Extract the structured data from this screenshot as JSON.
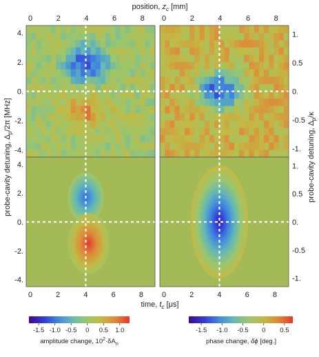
{
  "chart_data": {
    "type": "heatmap",
    "top_axis": {
      "label_prefix": "position, ",
      "label_var": "z",
      "label_sub": "c",
      "label_suffix": " [mm]",
      "ticks": [
        "0",
        "2",
        "4",
        "6",
        "8"
      ],
      "range": [
        -0.3,
        8.9
      ]
    },
    "bottom_axis": {
      "label_prefix": "time, ",
      "label_var": "t",
      "label_sub": "c",
      "label_suffix": " [μs]",
      "ticks": [
        "0",
        "2",
        "4",
        "6",
        "8"
      ],
      "range": [
        -0.3,
        9.0
      ]
    },
    "left_axis": {
      "label_text": "probe-cavity detuning, Δ",
      "label_sub": "p",
      "label_suffix": "/2π [MHz]",
      "ticks": [
        "4.",
        "2.",
        "0.",
        "-2.",
        "-4."
      ],
      "range": [
        -4.5,
        4.5
      ]
    },
    "right_axis": {
      "label_text": "probe-cavity detuning, Δ",
      "label_sub": "p",
      "label_suffix": "/κ",
      "ticks": [
        "1.",
        "0.5",
        "0.",
        "-0.5",
        "-1."
      ],
      "range": [
        -1.15,
        1.15
      ]
    },
    "markers": {
      "dashed_vertical_x": 4,
      "dashed_horizontal_y": 0
    },
    "panels": [
      {
        "position": "top-left",
        "kind": "measured",
        "quantity": "amplitude",
        "blue_peak": {
          "x": 4.0,
          "y": 1.9,
          "value": -1.2
        },
        "red_peak": {
          "x": 3.9,
          "y": -1.3,
          "value": 0.8
        }
      },
      {
        "position": "top-right",
        "kind": "measured",
        "quantity": "phase",
        "blue_peak": {
          "x": 4.0,
          "y": 0.0,
          "value": -1.3
        }
      },
      {
        "position": "bottom-left",
        "kind": "theory",
        "quantity": "amplitude",
        "blue_peak": {
          "x": 4.0,
          "y": 1.7,
          "value": -1.1
        },
        "red_peak": {
          "x": 4.2,
          "y": -1.5,
          "value": 1.2
        }
      },
      {
        "position": "bottom-right",
        "kind": "theory",
        "quantity": "phase",
        "blue_peak": {
          "x": 4.0,
          "y": 0.0,
          "value": -1.6
        }
      }
    ],
    "colorbars": [
      {
        "name": "amplitude",
        "ticks": [
          "-1.5",
          "-1.0",
          "-0.5",
          "0",
          "0.5",
          "1.0"
        ],
        "tick_values": [
          -1.5,
          -1.0,
          -0.5,
          0,
          0.5,
          1.0
        ],
        "range": [
          -1.8,
          1.3
        ],
        "label_prefix": "amplitude change, 10",
        "label_sup": "2",
        "label_mid": "·δA",
        "label_sub": "n"
      },
      {
        "name": "phase",
        "ticks": [
          "-1.5",
          "-1.0",
          "-0.5",
          "0",
          "0.5"
        ],
        "tick_values": [
          -1.5,
          -1.0,
          -0.5,
          0,
          0.5
        ],
        "range": [
          -1.8,
          0.7
        ],
        "label_prefix": "phase change, ",
        "label_var": "δϕ",
        "label_suffix": " [deg.]"
      }
    ],
    "colormap": [
      "#3a0a8c",
      "#3437d6",
      "#3f86e0",
      "#64b9b4",
      "#9dc66b",
      "#c2b945",
      "#e0893a",
      "#e03a2c"
    ],
    "background_color": "#a4ba57"
  }
}
